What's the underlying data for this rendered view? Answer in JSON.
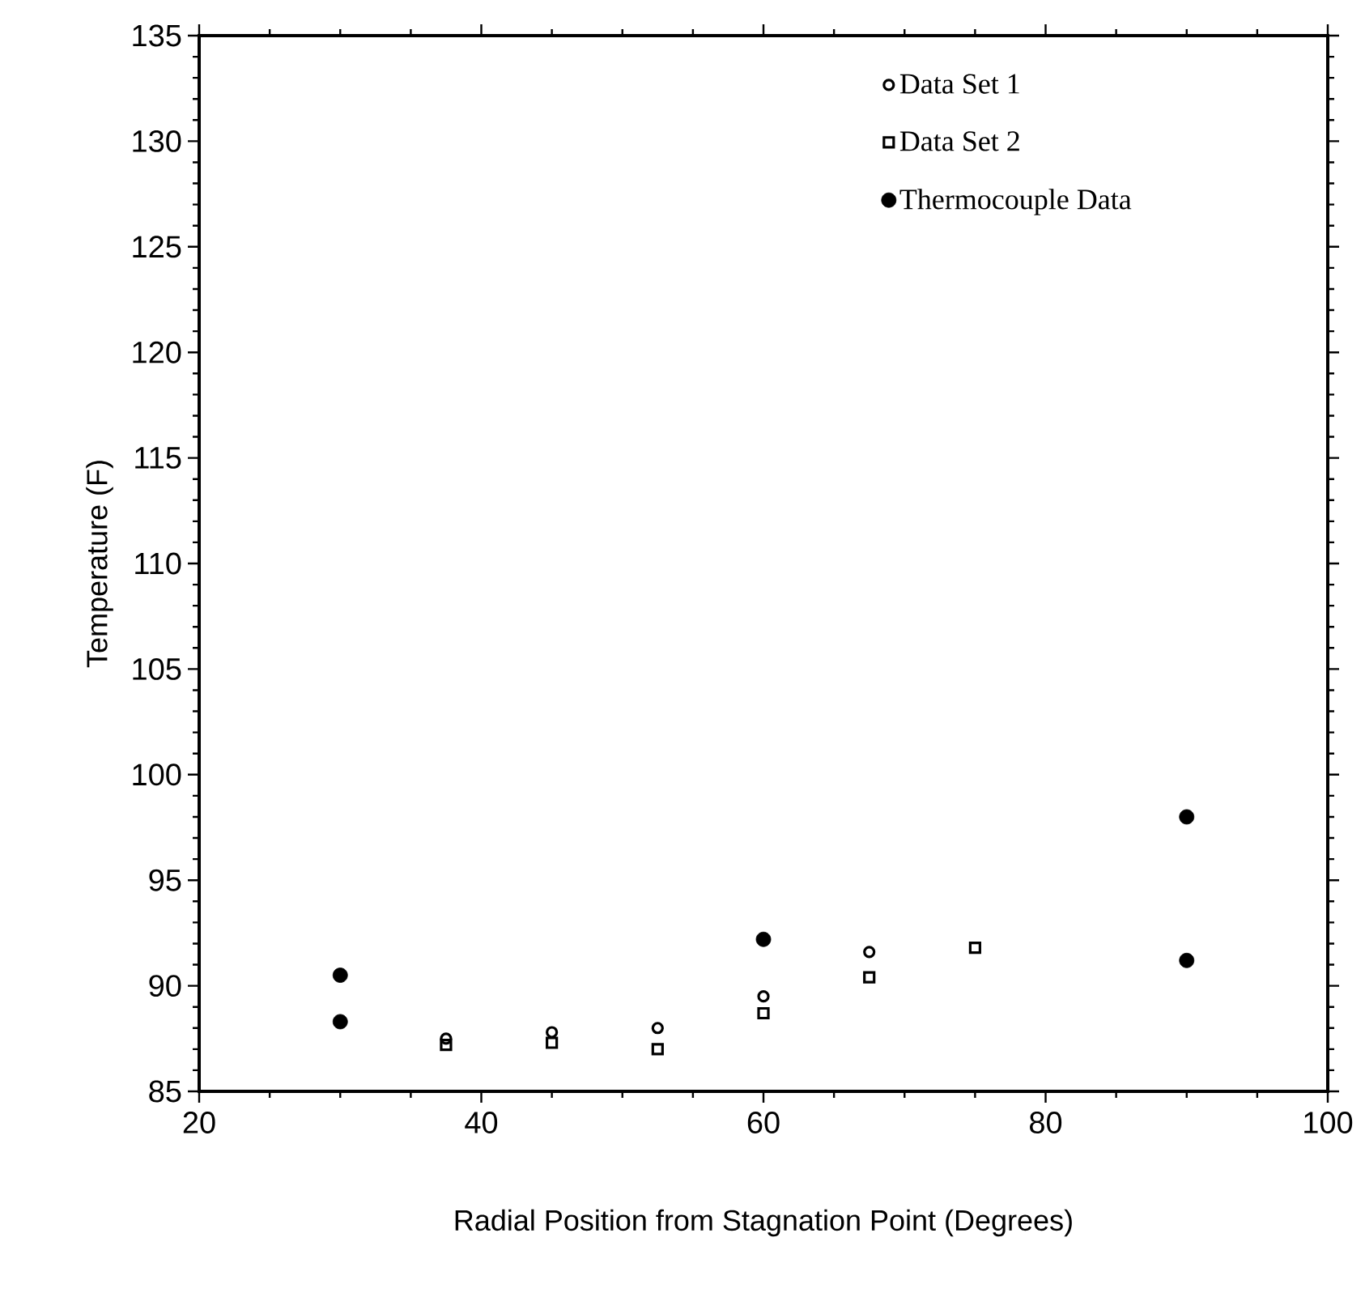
{
  "chart_data": {
    "type": "scatter",
    "xlabel": "Radial Position from Stagnation Point (Degrees)",
    "ylabel": "Temperature (F)",
    "series": [
      {
        "name": "Data Set 1",
        "color": "#000000",
        "marker": "circle",
        "x": [
          37.5,
          45,
          52.5,
          60,
          67.5
        ],
        "values": [
          87.5,
          87.8,
          88.0,
          89.5,
          91.6
        ]
      },
      {
        "name": "Data Set 2",
        "color": "#000000",
        "marker": "square",
        "x": [
          37.5,
          45,
          52.5,
          60,
          67.5,
          75
        ],
        "values": [
          87.2,
          87.3,
          87.0,
          88.7,
          90.4,
          91.8
        ]
      },
      {
        "name": "Thermocouple Data",
        "color": "#000000",
        "marker": "filled circle",
        "x": [
          30,
          30,
          60,
          90,
          90
        ],
        "values": [
          90.5,
          88.3,
          92.2,
          98.0,
          91.2
        ]
      }
    ],
    "xlim": [
      20,
      100
    ],
    "ylim": [
      85,
      135
    ],
    "xticks": [
      20,
      40,
      60,
      80,
      100
    ],
    "yticks": [
      85,
      90,
      95,
      100,
      105,
      110,
      115,
      120,
      125,
      130,
      135
    ],
    "grid": false,
    "legend": "top right"
  }
}
